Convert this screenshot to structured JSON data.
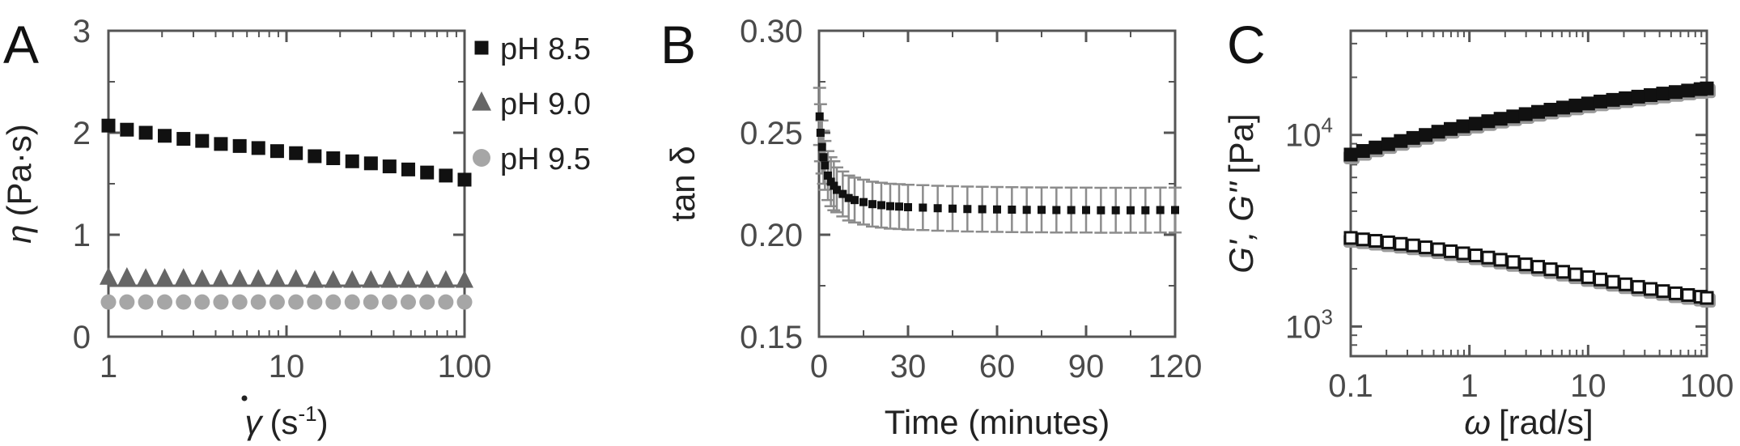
{
  "panels": {
    "A": {
      "letter": "A",
      "xlabel_symbol": "γ",
      "xlabel_unit": "(s",
      "xlabel_exp": "-1",
      "xlabel_close": ")",
      "ylabel_symbol": "η",
      "ylabel_unit": "(Pa·s)"
    },
    "B": {
      "letter": "B",
      "xlabel": "Time (minutes)",
      "ylabel": "tan δ"
    },
    "C": {
      "letter": "C",
      "xlabel_symbol": "ω",
      "xlabel_unit": "[rad/s]",
      "ylabel_symbol": "G', G''",
      "ylabel_unit": "[Pa]"
    }
  },
  "chart_data": [
    {
      "type": "scatter",
      "panel": "A",
      "xscale": "log",
      "xlim": [
        1,
        100
      ],
      "ylim": [
        0,
        3
      ],
      "xticks": [
        1,
        10,
        100
      ],
      "xtick_labels": [
        "1",
        "10",
        "100"
      ],
      "yticks": [
        0,
        1,
        2,
        3
      ],
      "ytick_labels": [
        "0",
        "1",
        "2",
        "3"
      ],
      "legend_position": "right, outside top",
      "grid": false,
      "series": [
        {
          "name": "pH 8.5",
          "marker": "square",
          "color": "#111111",
          "x": [
            1.0,
            1.27,
            1.62,
            2.07,
            2.64,
            3.36,
            4.28,
            5.46,
            6.95,
            8.86,
            11.3,
            14.4,
            18.3,
            23.4,
            29.8,
            37.9,
            48.3,
            61.6,
            78.5,
            100.0
          ],
          "y": [
            2.07,
            2.03,
            2.0,
            1.97,
            1.94,
            1.92,
            1.89,
            1.87,
            1.85,
            1.82,
            1.8,
            1.77,
            1.75,
            1.72,
            1.7,
            1.67,
            1.64,
            1.61,
            1.58,
            1.54
          ]
        },
        {
          "name": "pH 9.0",
          "marker": "triangle",
          "color": "#666666",
          "x": [
            1.0,
            1.27,
            1.62,
            2.07,
            2.64,
            3.36,
            4.28,
            5.46,
            6.95,
            8.86,
            11.3,
            14.4,
            18.3,
            23.4,
            29.8,
            37.9,
            48.3,
            61.6,
            78.5,
            100.0
          ],
          "y": [
            0.58,
            0.58,
            0.57,
            0.57,
            0.57,
            0.56,
            0.56,
            0.56,
            0.56,
            0.56,
            0.56,
            0.55,
            0.55,
            0.55,
            0.55,
            0.55,
            0.55,
            0.55,
            0.55,
            0.55
          ]
        },
        {
          "name": "pH 9.5",
          "marker": "circle",
          "color": "#a6a6a6",
          "x": [
            1.0,
            1.27,
            1.62,
            2.07,
            2.64,
            3.36,
            4.28,
            5.46,
            6.95,
            8.86,
            11.3,
            14.4,
            18.3,
            23.4,
            29.8,
            37.9,
            48.3,
            61.6,
            78.5,
            100.0
          ],
          "y": [
            0.34,
            0.34,
            0.34,
            0.34,
            0.34,
            0.34,
            0.34,
            0.34,
            0.34,
            0.34,
            0.34,
            0.34,
            0.34,
            0.34,
            0.34,
            0.34,
            0.34,
            0.34,
            0.34,
            0.34
          ]
        }
      ]
    },
    {
      "type": "scatter",
      "panel": "B",
      "xlim": [
        0,
        120
      ],
      "ylim": [
        0.15,
        0.3
      ],
      "xticks": [
        0,
        30,
        60,
        90,
        120
      ],
      "xtick_labels": [
        "0",
        "30",
        "60",
        "90",
        "120"
      ],
      "yticks": [
        0.15,
        0.2,
        0.25,
        0.3
      ],
      "ytick_labels": [
        "0.15",
        "0.20",
        "0.25",
        "0.30"
      ],
      "grid": false,
      "series": [
        {
          "name": "",
          "marker": "square",
          "color": "#111111",
          "error_color": "#8c8c8c",
          "x": [
            0.2,
            0.5,
            1.0,
            1.5,
            2.0,
            3.0,
            4.0,
            5.0,
            6.0,
            8.0,
            10.0,
            12.0,
            15.0,
            18.0,
            21.0,
            24.0,
            27.0,
            30.0,
            35.0,
            40.0,
            45.0,
            50.0,
            55.0,
            60.0,
            65.0,
            70.0,
            75.0,
            80.0,
            85.0,
            90.0,
            95.0,
            100.0,
            105.0,
            110.0,
            115.0,
            120.0
          ],
          "y": [
            0.258,
            0.25,
            0.243,
            0.238,
            0.234,
            0.229,
            0.226,
            0.224,
            0.222,
            0.22,
            0.218,
            0.217,
            0.216,
            0.215,
            0.2145,
            0.214,
            0.2138,
            0.2135,
            0.2133,
            0.213,
            0.2128,
            0.2126,
            0.2125,
            0.2124,
            0.2123,
            0.2122,
            0.2122,
            0.2121,
            0.2121,
            0.2121,
            0.212,
            0.212,
            0.212,
            0.212,
            0.2121,
            0.2121
          ],
          "yerr": [
            0.014,
            0.014,
            0.013,
            0.013,
            0.012,
            0.012,
            0.012,
            0.012,
            0.011,
            0.011,
            0.011,
            0.011,
            0.011,
            0.011,
            0.011,
            0.011,
            0.011,
            0.011,
            0.011,
            0.011,
            0.011,
            0.011,
            0.011,
            0.011,
            0.011,
            0.011,
            0.011,
            0.011,
            0.011,
            0.011,
            0.011,
            0.011,
            0.011,
            0.011,
            0.011,
            0.011
          ]
        }
      ]
    },
    {
      "type": "scatter",
      "panel": "C",
      "xscale": "log",
      "yscale": "log",
      "xlim": [
        0.1,
        100
      ],
      "ylim": [
        700,
        35000
      ],
      "xticks": [
        0.1,
        1,
        10,
        100
      ],
      "xtick_labels": [
        "0.1",
        "1",
        "10",
        "100"
      ],
      "yticks": [
        1000,
        10000
      ],
      "ytick_labels": [
        {
          "base": "10",
          "exp": "3"
        },
        {
          "base": "10",
          "exp": "4"
        }
      ],
      "grid": false,
      "series": [
        {
          "name": "G'",
          "marker": "square",
          "fill": "#111111",
          "stroke": "#111111",
          "x": [
            0.1,
            0.127,
            0.162,
            0.207,
            0.264,
            0.336,
            0.428,
            0.546,
            0.695,
            0.886,
            1.13,
            1.44,
            1.83,
            2.34,
            2.98,
            3.79,
            4.83,
            6.16,
            7.85,
            10.0,
            12.7,
            16.2,
            20.7,
            26.4,
            33.6,
            42.8,
            54.6,
            69.5,
            88.6,
            100.0
          ],
          "y": [
            7900,
            8250,
            8600,
            8950,
            9300,
            9650,
            10000,
            10400,
            10750,
            11100,
            11450,
            11800,
            12150,
            12500,
            12850,
            13200,
            13550,
            13900,
            14250,
            14600,
            14950,
            15250,
            15550,
            15850,
            16150,
            16450,
            16750,
            17050,
            17350,
            17500
          ]
        },
        {
          "name": "G''",
          "marker": "square-open",
          "fill": "#ffffff",
          "stroke": "#111111",
          "x": [
            0.1,
            0.127,
            0.162,
            0.207,
            0.264,
            0.336,
            0.428,
            0.546,
            0.695,
            0.886,
            1.13,
            1.44,
            1.83,
            2.34,
            2.98,
            3.79,
            4.83,
            6.16,
            7.85,
            10.0,
            12.7,
            16.2,
            20.7,
            26.4,
            33.6,
            42.8,
            54.6,
            69.5,
            88.6,
            100.0
          ],
          "y": [
            2900,
            2850,
            2800,
            2750,
            2700,
            2650,
            2590,
            2530,
            2470,
            2410,
            2350,
            2290,
            2230,
            2170,
            2110,
            2050,
            1990,
            1930,
            1870,
            1810,
            1760,
            1710,
            1660,
            1610,
            1570,
            1530,
            1490,
            1460,
            1430,
            1410
          ]
        }
      ]
    }
  ]
}
